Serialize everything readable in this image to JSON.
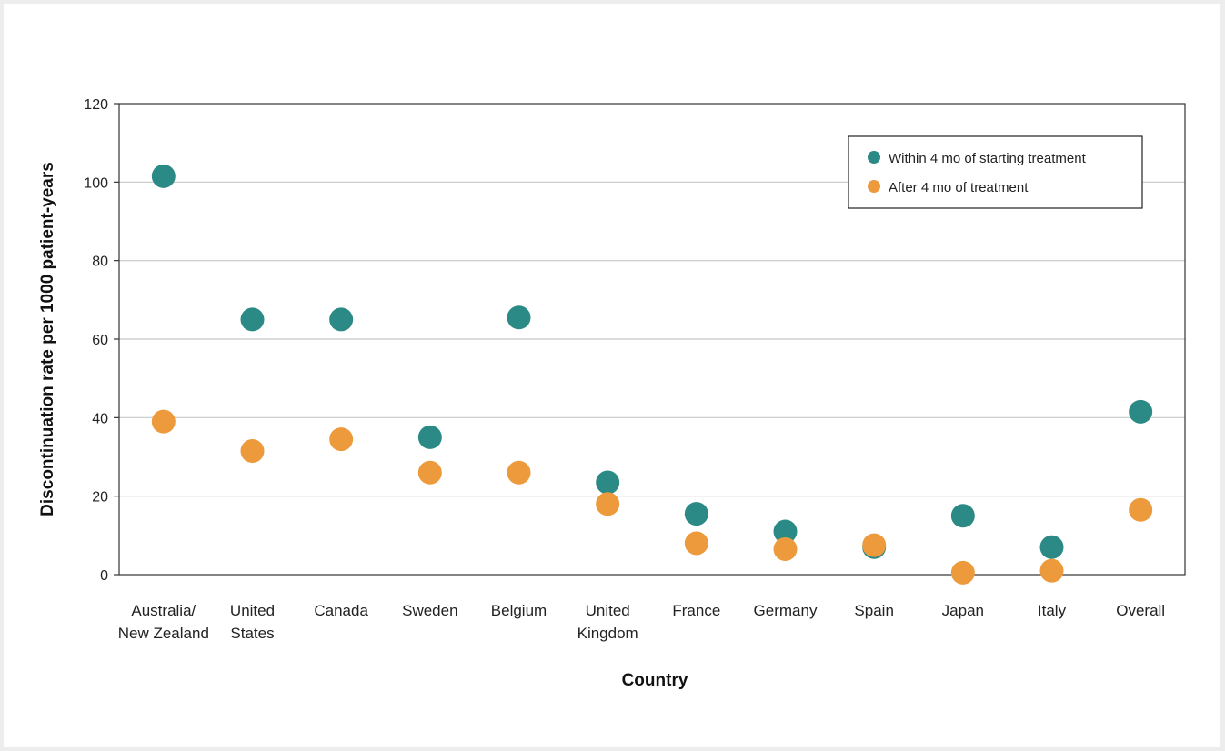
{
  "chart_data": {
    "type": "scatter",
    "title": "",
    "xlabel": "Country",
    "ylabel": "Discontinuation rate per 1000 patient-years",
    "ylim": [
      0,
      120
    ],
    "yticks": [
      0,
      20,
      40,
      60,
      80,
      100,
      120
    ],
    "grid": true,
    "legend_position": "top-right",
    "categories": [
      [
        "Australia/",
        "New Zealand"
      ],
      [
        "United",
        "States"
      ],
      [
        "Canada"
      ],
      [
        "Sweden"
      ],
      [
        "Belgium"
      ],
      [
        "United",
        "Kingdom"
      ],
      [
        "France"
      ],
      [
        "Germany"
      ],
      [
        "Spain"
      ],
      [
        "Japan"
      ],
      [
        "Italy"
      ],
      [
        "Overall"
      ]
    ],
    "series": [
      {
        "name": "Within 4 mo of starting treatment",
        "color": "#2b8a86",
        "values": [
          101.5,
          65,
          65,
          35,
          65.5,
          23.5,
          15.5,
          11,
          7,
          15,
          7,
          41.5
        ]
      },
      {
        "name": "After 4 mo of treatment",
        "color": "#ec9a3b",
        "values": [
          39,
          31.5,
          34.5,
          26,
          26,
          18,
          8,
          6.5,
          7.5,
          0.5,
          1,
          16.5
        ]
      }
    ]
  }
}
